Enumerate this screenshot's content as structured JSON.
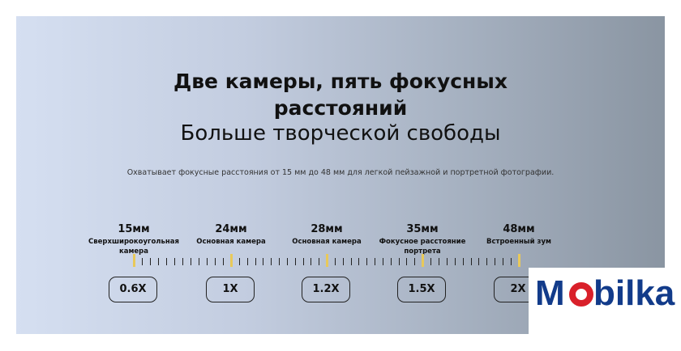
{
  "headline": {
    "line1": "Две камеры, пять фокусных",
    "line2": "расстояний",
    "subtitle": "Больше творческой свободы"
  },
  "description": "Охватывает фокусные расстояния от 15 мм до 48 мм для легкой пейзажной и портретной фотографии.",
  "stops": [
    {
      "mm": "15мм",
      "desc": "Сверхширокоугольная камера",
      "zoom": "0.6X"
    },
    {
      "mm": "24мм",
      "desc": "Основная камера",
      "zoom": "1X"
    },
    {
      "mm": "28мм",
      "desc": "Основная камера",
      "zoom": "1.2X"
    },
    {
      "mm": "35мм",
      "desc": "Фокусное расстояние портрета",
      "zoom": "1.5X"
    },
    {
      "mm": "48мм",
      "desc": "Встроенный зум",
      "zoom": "2X"
    }
  ],
  "colors": {
    "marker": "#e8c95a",
    "logo_blue": "#123b8a",
    "logo_red": "#d9202a"
  },
  "logo": {
    "text": "Mobilka"
  }
}
